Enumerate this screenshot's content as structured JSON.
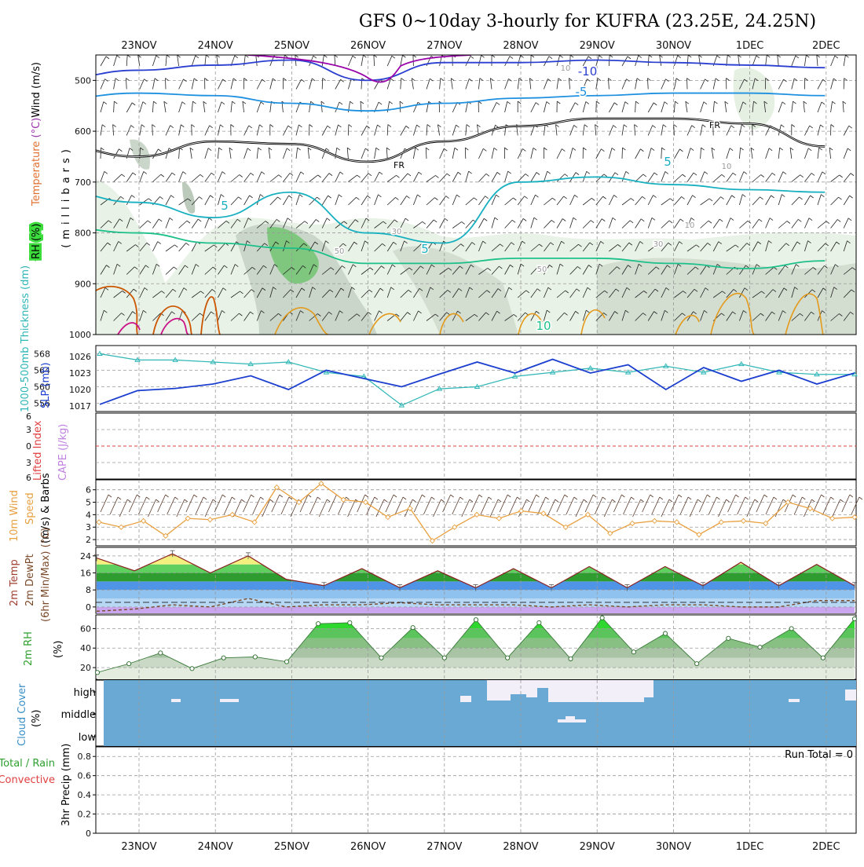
{
  "title": "GFS 0~10day 3-hourly for KUFRA (23.25E, 24.25N)",
  "dates": [
    "23NOV",
    "24NOV",
    "25NOV",
    "26NOV",
    "27NOV",
    "28NOV",
    "29NOV",
    "30NOV",
    "1DEC",
    "2DEC"
  ],
  "colors": {
    "slp": "#1c3fcf",
    "thickness": "#2fb6b6",
    "wind10": "#e8a040",
    "temp": "#8b2020",
    "dewpt": "#7a4a2a",
    "rh": "#3cdc3c",
    "cloud": "#6aa9d3",
    "lifted": "#e04040",
    "cape": "#c080e0"
  },
  "chart_data": [
    {
      "type": "contour",
      "panel": "upper-air",
      "ylabel_parts": [
        "Temperature",
        " (°C)",
        "Wind (m/s)"
      ],
      "ylabel_rh": "RH (%)",
      "ylabel_units": "(millibars)",
      "yticks": [
        "500",
        "600",
        "700",
        "800",
        "900",
        "1000"
      ],
      "ylim": [
        1000,
        450
      ],
      "contour_labels": [
        "-10",
        "-5",
        "FR",
        "FR",
        "5",
        "5",
        "5",
        "10",
        "10",
        "10",
        "10",
        "30",
        "30",
        "50",
        "50"
      ],
      "isotherms": [
        {
          "name": "-10",
          "pressure_by_day": [
            495,
            480,
            470,
            460,
            500,
            465,
            465,
            460,
            465,
            470,
            475
          ]
        },
        {
          "name": "-5",
          "pressure_by_day": [
            535,
            525,
            530,
            545,
            560,
            545,
            535,
            530,
            525,
            525,
            530
          ]
        },
        {
          "name": "FR",
          "pressure_by_day": [
            630,
            650,
            620,
            625,
            660,
            620,
            590,
            575,
            575,
            585,
            630
          ]
        },
        {
          "name": "5",
          "pressure_by_day": [
            720,
            740,
            770,
            720,
            800,
            820,
            700,
            690,
            705,
            715,
            720
          ]
        },
        {
          "name": "10",
          "pressure_by_day": [
            790,
            800,
            820,
            830,
            860,
            860,
            850,
            850,
            860,
            870,
            855
          ]
        }
      ]
    },
    {
      "type": "line",
      "panel": "slp-thickness",
      "ylabel_thickness": "1000-500mb Thickness (dm)",
      "ylabel_slp": "SLP (mb)",
      "yticks_left": [
        "568",
        "564",
        "560",
        "556"
      ],
      "yticks_right": [
        "1026",
        "1023",
        "1020",
        "1017"
      ],
      "x": [
        "22NOV12",
        "23NOV00",
        "23NOV12",
        "24NOV00",
        "24NOV12",
        "25NOV00",
        "25NOV12",
        "26NOV00",
        "26NOV12",
        "27NOV00",
        "27NOV12",
        "28NOV00",
        "28NOV12",
        "29NOV00",
        "29NOV12",
        "30NOV00",
        "30NOV12",
        "1DEC00",
        "1DEC12",
        "2DEC00",
        "2DEC06"
      ],
      "series": [
        {
          "name": "SLP (mb)",
          "values": [
            1017.3,
            1019.8,
            1020.2,
            1021,
            1022.5,
            1020,
            1023.5,
            1022,
            1020.5,
            1022.8,
            1025,
            1023,
            1025.5,
            1023,
            1024.5,
            1020,
            1024,
            1021.5,
            1023.5,
            1021,
            1023
          ]
        },
        {
          "name": "1000-500mb Thickness (dm)",
          "values": [
            568,
            566.5,
            566.5,
            566,
            565.5,
            566,
            563.5,
            562.5,
            555.5,
            559.5,
            560,
            562.5,
            563.5,
            564.5,
            563.5,
            565,
            563.5,
            565.5,
            563.5,
            563,
            563
          ]
        }
      ]
    },
    {
      "type": "line",
      "panel": "stability",
      "ylabel_li": "Lifted Index",
      "ylabel_cape": "CAPE (J/kg)",
      "yticks": [
        "6",
        "3",
        "0",
        "3",
        "6"
      ],
      "series": [
        {
          "name": "Lifted Index",
          "values": []
        },
        {
          "name": "CAPE (J/kg)",
          "values": []
        }
      ]
    },
    {
      "type": "line",
      "panel": "wind10m",
      "ylabel_parts": [
        "10m Wind",
        "Speed",
        "(m/s) & Barbs"
      ],
      "yticks": [
        "6",
        "5",
        "4",
        "3",
        "2"
      ],
      "ylim": [
        1.5,
        6.8
      ],
      "series": [
        {
          "name": "10m Wind Speed (m/s)",
          "values": [
            3.4,
            3.0,
            3.5,
            2.3,
            3.7,
            3.6,
            4.0,
            3.4,
            6.2,
            5.0,
            6.5,
            5.2,
            5.0,
            3.8,
            4.5,
            1.9,
            3.0,
            4.0,
            3.7,
            4.3,
            4.1,
            3.0,
            4.0,
            2.5,
            3.3,
            3.5,
            3.4,
            2.4,
            3.4,
            3.5,
            3.3,
            5.0,
            4.5,
            3.7,
            3.8
          ]
        }
      ]
    },
    {
      "type": "area",
      "panel": "temperature",
      "ylabel_parts": [
        "2m Temp",
        "2m DewPt",
        "(6hr Min/Max) (°C)"
      ],
      "yticks": [
        "24",
        "16",
        "8",
        "0"
      ],
      "ylim": [
        -3,
        28
      ],
      "series": [
        {
          "name": "2m Temp",
          "values": [
            23,
            17,
            25,
            16,
            24,
            13,
            10,
            18,
            9,
            17,
            9,
            18,
            9,
            19,
            9,
            19,
            10,
            21,
            10,
            20,
            10
          ]
        },
        {
          "name": "2m DewPt",
          "values": [
            -2,
            -1,
            1,
            0,
            4,
            0,
            1,
            1,
            2,
            1,
            1,
            1,
            0,
            1,
            0,
            1,
            1,
            0,
            0,
            3,
            3
          ]
        }
      ]
    },
    {
      "type": "area",
      "panel": "rh2m",
      "ylabel_parts": [
        "2m RH",
        "(%)"
      ],
      "yticks": [
        "60",
        "40",
        "20"
      ],
      "ylim": [
        8,
        74
      ],
      "series": [
        {
          "name": "2m RH",
          "values": [
            15,
            24,
            35,
            19,
            30,
            31,
            26,
            65,
            66,
            30,
            61,
            30,
            69,
            30,
            66,
            29,
            71,
            36,
            55,
            24,
            50,
            41,
            60,
            30,
            70
          ]
        }
      ]
    },
    {
      "type": "heatmap",
      "panel": "cloud",
      "ylabel_parts": [
        "Cloud Cover",
        "(%)"
      ],
      "yticks": [
        "high",
        "middle",
        "low"
      ]
    },
    {
      "type": "bar",
      "panel": "precip",
      "ylabel_parts": [
        "Total / Rain",
        "Convective",
        "3hr Precip (mm)"
      ],
      "yticks": [
        "0.8",
        "0.6",
        "0.4",
        "0.2",
        "0"
      ],
      "ylim": [
        0,
        0.9
      ],
      "run_total": "Run Total = 0",
      "values": []
    }
  ]
}
